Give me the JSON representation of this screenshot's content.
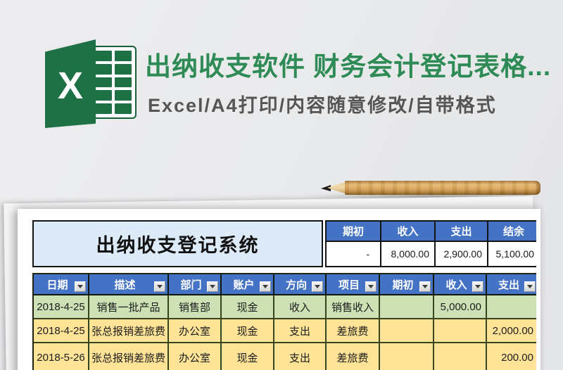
{
  "hero": {
    "logo_letter": "X",
    "title": "出纳收支软件 财务会计登记表格...",
    "subtitle": "Excel/A4打印/内容随意修改/自带格式"
  },
  "sheet": {
    "title": "出纳收支登记系统",
    "summary": {
      "headers": [
        "期初",
        "收入",
        "支出",
        "结余"
      ],
      "values": [
        "-",
        "8,000.00",
        "2,900.00",
        "5,100.00"
      ]
    },
    "table": {
      "columns": [
        "日期",
        "描述",
        "部门",
        "账户",
        "方向",
        "项目",
        "期初",
        "收入",
        "支出"
      ],
      "rows": [
        {
          "tone": "green",
          "cells": [
            "2018-4-25",
            "销售一批产品",
            "销售部",
            "现金",
            "收入",
            "销售收入",
            "",
            "5,000.00",
            ""
          ]
        },
        {
          "tone": "yellow",
          "cells": [
            "2018-4-25",
            "张总报销差旅费",
            "办公室",
            "现金",
            "支出",
            "差旅费",
            "",
            "",
            "2,000.00"
          ]
        },
        {
          "tone": "yellow",
          "cells": [
            "2018-5-26",
            "张总报销差旅费",
            "办公室",
            "现金",
            "支出",
            "差旅费",
            "",
            "",
            "200.00"
          ]
        }
      ]
    }
  },
  "colors": {
    "brand_green": "#1e7145",
    "title_green": "#2e8b56",
    "header_blue": "#4472c4",
    "title_cell_blue": "#dcebf7",
    "row_green": "#cde1b5",
    "row_yellow": "#ffe498",
    "border_dark": "#141414",
    "grid_border_green": "#36451c"
  },
  "icons": {
    "filter_arrow": "chevron-down"
  }
}
